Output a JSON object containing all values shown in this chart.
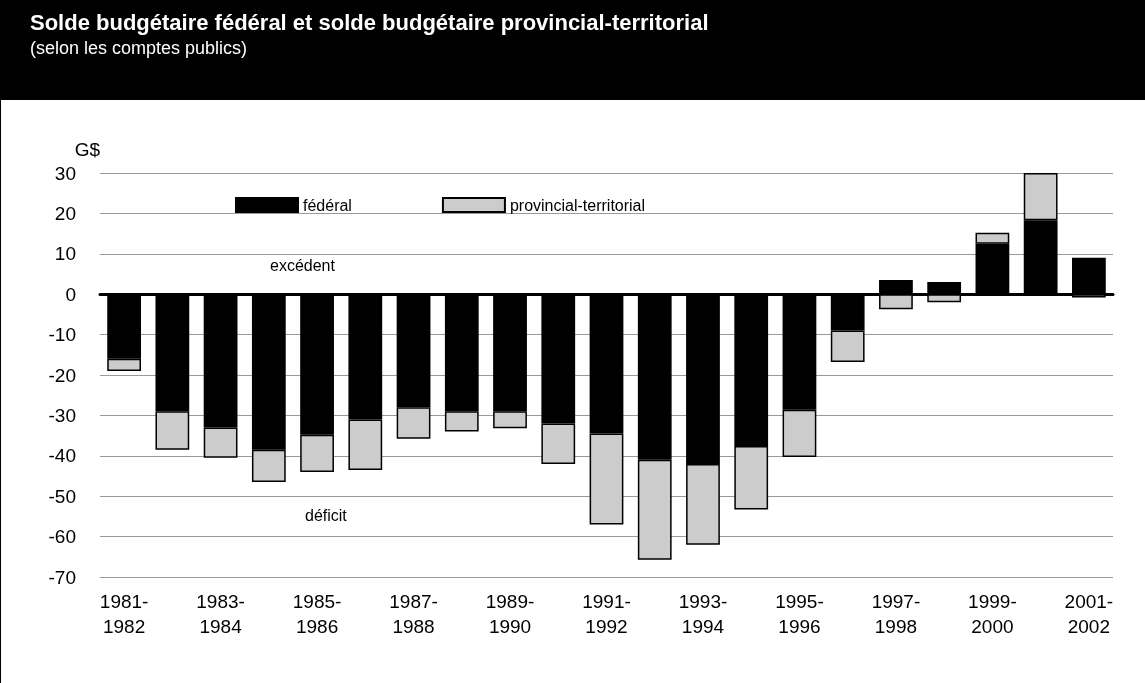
{
  "chart_data": {
    "type": "bar",
    "title": "Solde budgétaire fédéral et solde budgétaire provincial-territorial",
    "subtitle": "(selon les comptes publics)",
    "ylabel": "G$",
    "categories": [
      "1981-1982",
      null,
      "1983-1984",
      null,
      "1985-1986",
      null,
      "1987-1988",
      null,
      "1989-1990",
      null,
      "1991-1992",
      null,
      "1993-1994",
      null,
      "1995-1996",
      null,
      "1997-1998",
      null,
      "1999-2000",
      null,
      "2001-2002"
    ],
    "series": [
      {
        "name": "fédéral",
        "color": "#000000",
        "values": [
          -16,
          -29,
          -33,
          -38.5,
          -34.8,
          -31,
          -28,
          -29,
          -29,
          -32,
          -34.5,
          -41,
          -42,
          -37.6,
          -28.6,
          -9,
          3.5,
          3,
          12.5,
          18.3,
          9
        ]
      },
      {
        "name": "provincial-territorial",
        "color": "#cccccc",
        "values": [
          -3,
          -9.5,
          -7.5,
          -8,
          -9.2,
          -12.5,
          -7.8,
          -5,
          -4.2,
          -10,
          -22.5,
          -24.7,
          -20,
          -15.7,
          -11.7,
          -7.8,
          -3.7,
          -2,
          2.7,
          11.7,
          -0.8
        ]
      }
    ],
    "stacked": true,
    "ylim": [
      -70,
      30
    ],
    "yticks": [
      -70,
      -60,
      -50,
      -40,
      -30,
      -20,
      -10,
      0,
      10,
      20,
      30
    ],
    "grid": "y",
    "legend": "top",
    "annotations": [
      "excédent",
      "déficit"
    ]
  }
}
